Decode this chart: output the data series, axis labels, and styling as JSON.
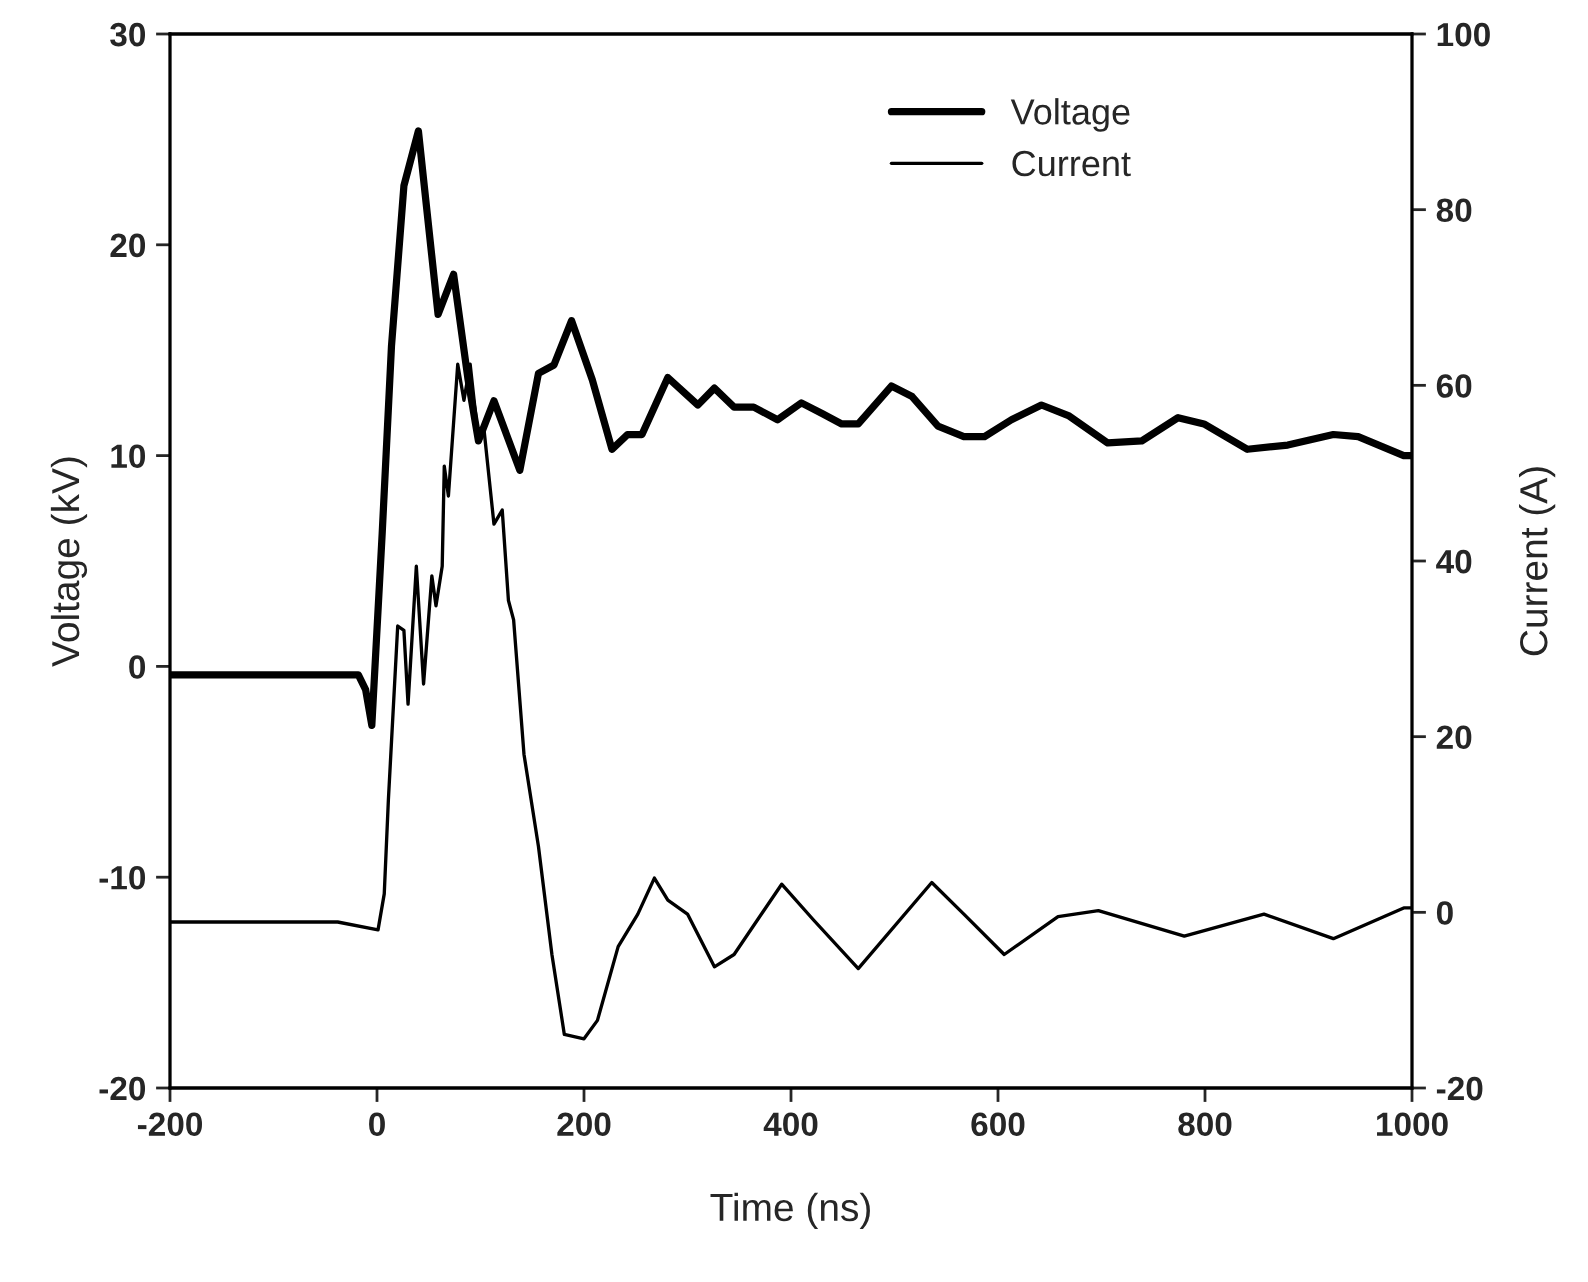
{
  "chart_data": {
    "type": "line",
    "xlabel": "Time (ns)",
    "ylabel": "Voltage (kV)",
    "y2label": "Current (A)",
    "xlim": [
      -200,
      1000
    ],
    "xticks": [
      -200,
      0,
      200,
      400,
      600,
      800,
      1000
    ],
    "ylim": [
      -20,
      30
    ],
    "yticks": [
      -20,
      -10,
      0,
      10,
      20,
      30
    ],
    "y2lim": [
      -20,
      100
    ],
    "y2ticks": [
      -20,
      0,
      20,
      40,
      60,
      80,
      100
    ],
    "grid": false,
    "legend": "top right",
    "marker": "none",
    "line_style": "solid",
    "series": [
      {
        "name": "Voltage",
        "color": "#000000",
        "x": [
          -200,
          -18,
          -11,
          -5,
          5,
          14,
          26,
          40,
          45,
          59,
          74,
          88,
          98,
          113,
          138,
          156,
          171,
          188,
          208,
          227,
          242,
          256,
          281,
          310,
          326,
          345,
          364,
          387,
          410,
          430,
          449,
          465,
          497,
          517,
          542,
          567,
          587,
          613,
          642,
          668,
          706,
          739,
          774,
          799,
          841,
          880,
          924,
          948,
          992,
          1000
        ],
        "values": [
          -0.4,
          -0.4,
          -1.1,
          -2.8,
          6.3,
          15.2,
          22.8,
          25.4,
          23.1,
          16.7,
          18.6,
          13.6,
          10.7,
          12.6,
          9.3,
          13.9,
          14.3,
          16.4,
          13.6,
          10.3,
          11.0,
          11.0,
          13.7,
          12.4,
          13.2,
          12.3,
          12.3,
          11.7,
          12.5,
          12.0,
          11.5,
          11.5,
          13.3,
          12.8,
          11.4,
          10.9,
          10.9,
          11.7,
          12.4,
          11.9,
          10.6,
          10.7,
          11.8,
          11.5,
          10.3,
          10.5,
          11.0,
          10.9,
          10.0,
          10.0
        ]
      },
      {
        "name": "Current",
        "color": "#000000",
        "axis": "y2",
        "x": [
          -200,
          -38,
          1,
          7,
          11,
          20,
          26,
          30,
          38,
          45,
          53,
          57,
          63,
          65,
          69,
          78,
          84,
          90,
          98,
          103,
          113,
          121,
          127,
          132,
          142,
          156,
          169,
          181,
          200,
          213,
          233,
          252,
          268,
          281,
          300,
          326,
          345,
          391,
          422,
          465,
          536,
          567,
          606,
          658,
          697,
          780,
          857,
          924,
          992,
          1000
        ],
        "values": [
          -1.1,
          -1.1,
          -2.0,
          2.1,
          12.8,
          32.6,
          32.1,
          23.7,
          39.4,
          26.0,
          38.3,
          34.9,
          39.4,
          50.8,
          47.4,
          62.4,
          58.3,
          62.4,
          53.8,
          55.4,
          44.2,
          45.8,
          35.5,
          33.3,
          18.0,
          7.5,
          -4.8,
          -13.9,
          -14.4,
          -12.3,
          -3.9,
          -0.2,
          3.9,
          1.4,
          -0.2,
          -6.2,
          -4.8,
          3.2,
          -0.9,
          -6.4,
          3.4,
          -0.2,
          -4.8,
          -0.5,
          0.2,
          -2.7,
          -0.2,
          -3.0,
          0.5,
          0.5
        ]
      }
    ]
  }
}
